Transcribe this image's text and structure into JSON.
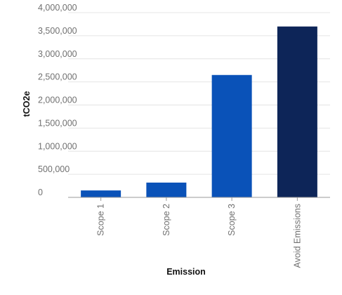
{
  "chart_data": {
    "type": "bar",
    "categories": [
      "Scope 1",
      "Scope 2",
      "Scope 3",
      "Avoid Emissions"
    ],
    "values": [
      150000,
      320000,
      2650000,
      3700000
    ],
    "colors": [
      "#0a52b8",
      "#0a52b8",
      "#0a52b8",
      "#0d2558"
    ],
    "xlabel": "Emission",
    "ylabel": "tCO2e",
    "ylim": [
      0,
      4000000
    ],
    "yticks": [
      0,
      500000,
      1000000,
      1500000,
      2000000,
      2500000,
      3000000,
      3500000,
      4000000
    ],
    "ytick_labels": [
      "0",
      "500,000",
      "1,000,000",
      "1,500,000",
      "2,000,000",
      "2,500,000",
      "3,000,000",
      "3,500,000",
      "4,000,000"
    ],
    "grid": true,
    "legend": "none"
  }
}
